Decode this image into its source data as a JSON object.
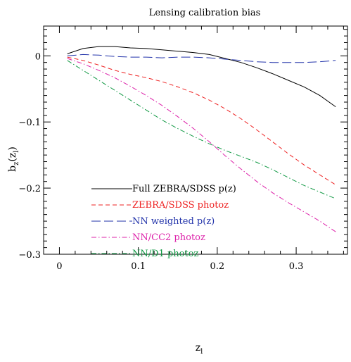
{
  "chart_data": {
    "type": "line",
    "title": "Lensing calibration bias",
    "xlabel": "z",
    "xlabel_sub": "l",
    "ylabel": "b",
    "ylabel_sub": "z",
    "ylabel_arg": "(z",
    "ylabel_arg_sub": "l",
    "ylabel_close": ")",
    "xlim": [
      -0.02,
      0.365
    ],
    "ylim": [
      -0.3,
      0.045
    ],
    "xticks": [
      0,
      0.1,
      0.2,
      0.3
    ],
    "xtick_labels": [
      "0",
      "0.1",
      "0.2",
      "0.3"
    ],
    "yticks": [
      0,
      -0.1,
      -0.2,
      -0.3
    ],
    "ytick_labels": [
      "0",
      "−0.1",
      "−0.2",
      "−0.3"
    ],
    "legend_position": "bottom-left",
    "series": [
      {
        "name": "Full ZEBRA/SDSS p(z)",
        "color": "#000000",
        "dash": "solid",
        "x": [
          0.01,
          0.03,
          0.05,
          0.07,
          0.09,
          0.11,
          0.13,
          0.15,
          0.17,
          0.19,
          0.21,
          0.23,
          0.25,
          0.27,
          0.29,
          0.31,
          0.33,
          0.35
        ],
        "y": [
          0.003,
          0.011,
          0.014,
          0.014,
          0.012,
          0.011,
          0.009,
          0.007,
          0.005,
          0.002,
          -0.004,
          -0.01,
          -0.018,
          -0.027,
          -0.037,
          -0.047,
          -0.06,
          -0.077
        ]
      },
      {
        "name": "ZEBRA/SDSS photoz",
        "color": "#ee2222",
        "dash": "dashed",
        "x": [
          0.01,
          0.03,
          0.05,
          0.07,
          0.09,
          0.11,
          0.13,
          0.15,
          0.17,
          0.19,
          0.21,
          0.23,
          0.25,
          0.27,
          0.29,
          0.31,
          0.33,
          0.35
        ],
        "y": [
          -0.002,
          -0.007,
          -0.014,
          -0.022,
          -0.028,
          -0.033,
          -0.039,
          -0.047,
          -0.056,
          -0.067,
          -0.08,
          -0.095,
          -0.112,
          -0.13,
          -0.148,
          -0.165,
          -0.18,
          -0.195
        ]
      },
      {
        "name": "NN weighted p(z)",
        "color": "#2233aa",
        "dash": "longdash",
        "x": [
          0.01,
          0.03,
          0.05,
          0.07,
          0.09,
          0.11,
          0.13,
          0.15,
          0.17,
          0.19,
          0.21,
          0.23,
          0.25,
          0.27,
          0.29,
          0.31,
          0.33,
          0.35
        ],
        "y": [
          0.0,
          0.002,
          0.001,
          -0.001,
          -0.002,
          -0.002,
          -0.003,
          -0.002,
          -0.002,
          -0.003,
          -0.005,
          -0.007,
          -0.009,
          -0.01,
          -0.01,
          -0.01,
          -0.009,
          -0.007
        ]
      },
      {
        "name": "NN/CC2 photoz",
        "color": "#dd22aa",
        "dash": "dashdot",
        "x": [
          0.01,
          0.03,
          0.05,
          0.07,
          0.09,
          0.11,
          0.13,
          0.15,
          0.17,
          0.19,
          0.21,
          0.23,
          0.25,
          0.27,
          0.29,
          0.31,
          0.33,
          0.35
        ],
        "y": [
          -0.004,
          -0.012,
          -0.022,
          -0.033,
          -0.046,
          -0.06,
          -0.075,
          -0.092,
          -0.11,
          -0.13,
          -0.151,
          -0.171,
          -0.19,
          -0.207,
          -0.222,
          -0.236,
          -0.25,
          -0.266
        ]
      },
      {
        "name": "NN/D1 photoz",
        "color": "#119944",
        "dash": "dashdot",
        "x": [
          0.01,
          0.03,
          0.05,
          0.07,
          0.09,
          0.11,
          0.13,
          0.15,
          0.17,
          0.19,
          0.21,
          0.23,
          0.25,
          0.27,
          0.29,
          0.31,
          0.33,
          0.35
        ],
        "y": [
          -0.007,
          -0.022,
          -0.037,
          -0.052,
          -0.067,
          -0.082,
          -0.097,
          -0.11,
          -0.122,
          -0.133,
          -0.143,
          -0.152,
          -0.161,
          -0.172,
          -0.184,
          -0.196,
          -0.206,
          -0.216
        ]
      }
    ]
  }
}
